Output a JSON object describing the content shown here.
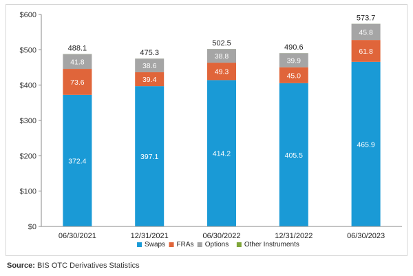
{
  "chart_data": {
    "type": "bar",
    "stacked": true,
    "categories": [
      "06/30/2021",
      "12/31/2021",
      "06/30/2022",
      "12/31/2022",
      "06/30/2023"
    ],
    "series": [
      {
        "name": "Swaps",
        "color": "#1a9ad6",
        "values": [
          372.4,
          397.1,
          414.2,
          405.5,
          465.9
        ]
      },
      {
        "name": "FRAs",
        "color": "#e0653a",
        "values": [
          73.6,
          39.4,
          49.3,
          45.0,
          61.8
        ]
      },
      {
        "name": "Options",
        "color": "#a5a5a5",
        "values": [
          41.8,
          38.6,
          38.8,
          39.9,
          45.8
        ]
      },
      {
        "name": "Other Instruments",
        "color": "#7fa63a",
        "values": [
          0.3,
          0.2,
          0.2,
          0.2,
          0.2
        ]
      }
    ],
    "value_labels": {
      "Swaps": [
        "372.4",
        "397.1",
        "414.2",
        "405.5",
        "465.9"
      ],
      "FRAs": [
        "73.6",
        "39.4",
        "49.3",
        "45.0",
        "61.8"
      ],
      "Options": [
        "41.8",
        "38.6",
        "38.8",
        "39.9",
        "45.8"
      ]
    },
    "totals": [
      "488.1",
      "475.3",
      "502.5",
      "490.6",
      "573.7"
    ],
    "ylim": [
      0,
      600
    ],
    "yticks": [
      0,
      100,
      200,
      300,
      400,
      500,
      600
    ],
    "ytick_labels": [
      "$0",
      "$100",
      "$200",
      "$300",
      "$400",
      "$500",
      "$600"
    ],
    "grid": false,
    "legend_position": "bottom-center"
  },
  "source": {
    "label": "Source:",
    "text": "BIS OTC Derivatives Statistics"
  }
}
